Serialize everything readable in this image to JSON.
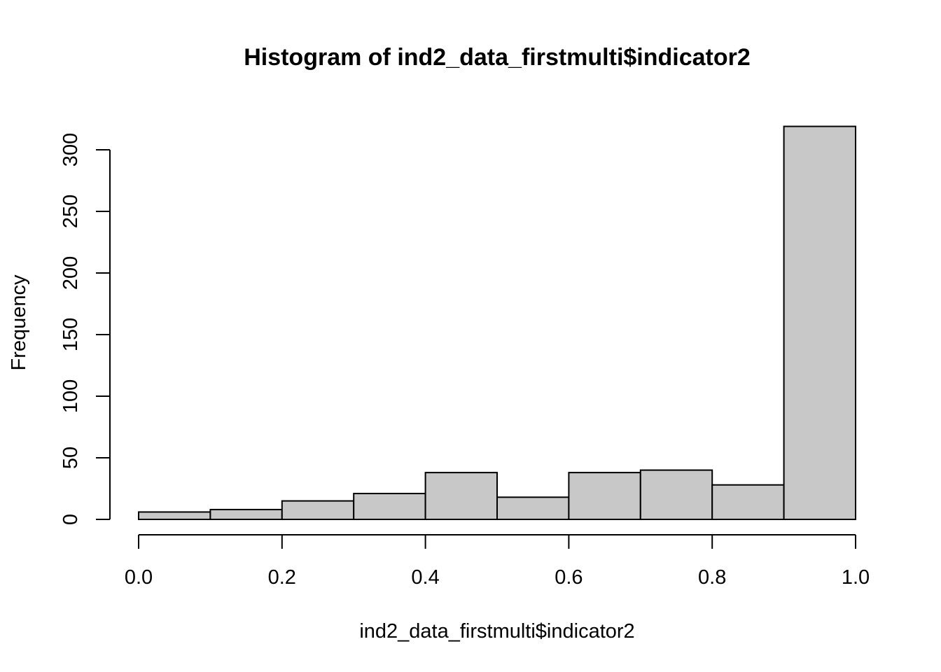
{
  "chart_data": {
    "type": "bar",
    "title": "Histogram of ind2_data_firstmulti$indicator2",
    "xlabel": "ind2_data_firstmulti$indicator2",
    "ylabel": "Frequency",
    "bins": [
      {
        "start": 0.0,
        "end": 0.1,
        "count": 6
      },
      {
        "start": 0.1,
        "end": 0.2,
        "count": 8
      },
      {
        "start": 0.2,
        "end": 0.3,
        "count": 15
      },
      {
        "start": 0.3,
        "end": 0.4,
        "count": 21
      },
      {
        "start": 0.4,
        "end": 0.5,
        "count": 38
      },
      {
        "start": 0.5,
        "end": 0.6,
        "count": 18
      },
      {
        "start": 0.6,
        "end": 0.7,
        "count": 38
      },
      {
        "start": 0.7,
        "end": 0.8,
        "count": 40
      },
      {
        "start": 0.8,
        "end": 0.9,
        "count": 28
      },
      {
        "start": 0.9,
        "end": 1.0,
        "count": 319
      }
    ],
    "xlim": [
      0.0,
      1.0
    ],
    "ylim": [
      0,
      300
    ],
    "x_ticks": [
      0.0,
      0.2,
      0.4,
      0.6,
      0.8,
      1.0
    ],
    "x_tick_labels": [
      "0.0",
      "0.2",
      "0.4",
      "0.6",
      "0.8",
      "1.0"
    ],
    "y_ticks": [
      0,
      50,
      100,
      150,
      200,
      250,
      300
    ],
    "y_tick_labels": [
      "0",
      "50",
      "100",
      "150",
      "200",
      "250",
      "300"
    ],
    "bar_fill": "#c8c8c8",
    "grid": false,
    "legend": "none"
  }
}
